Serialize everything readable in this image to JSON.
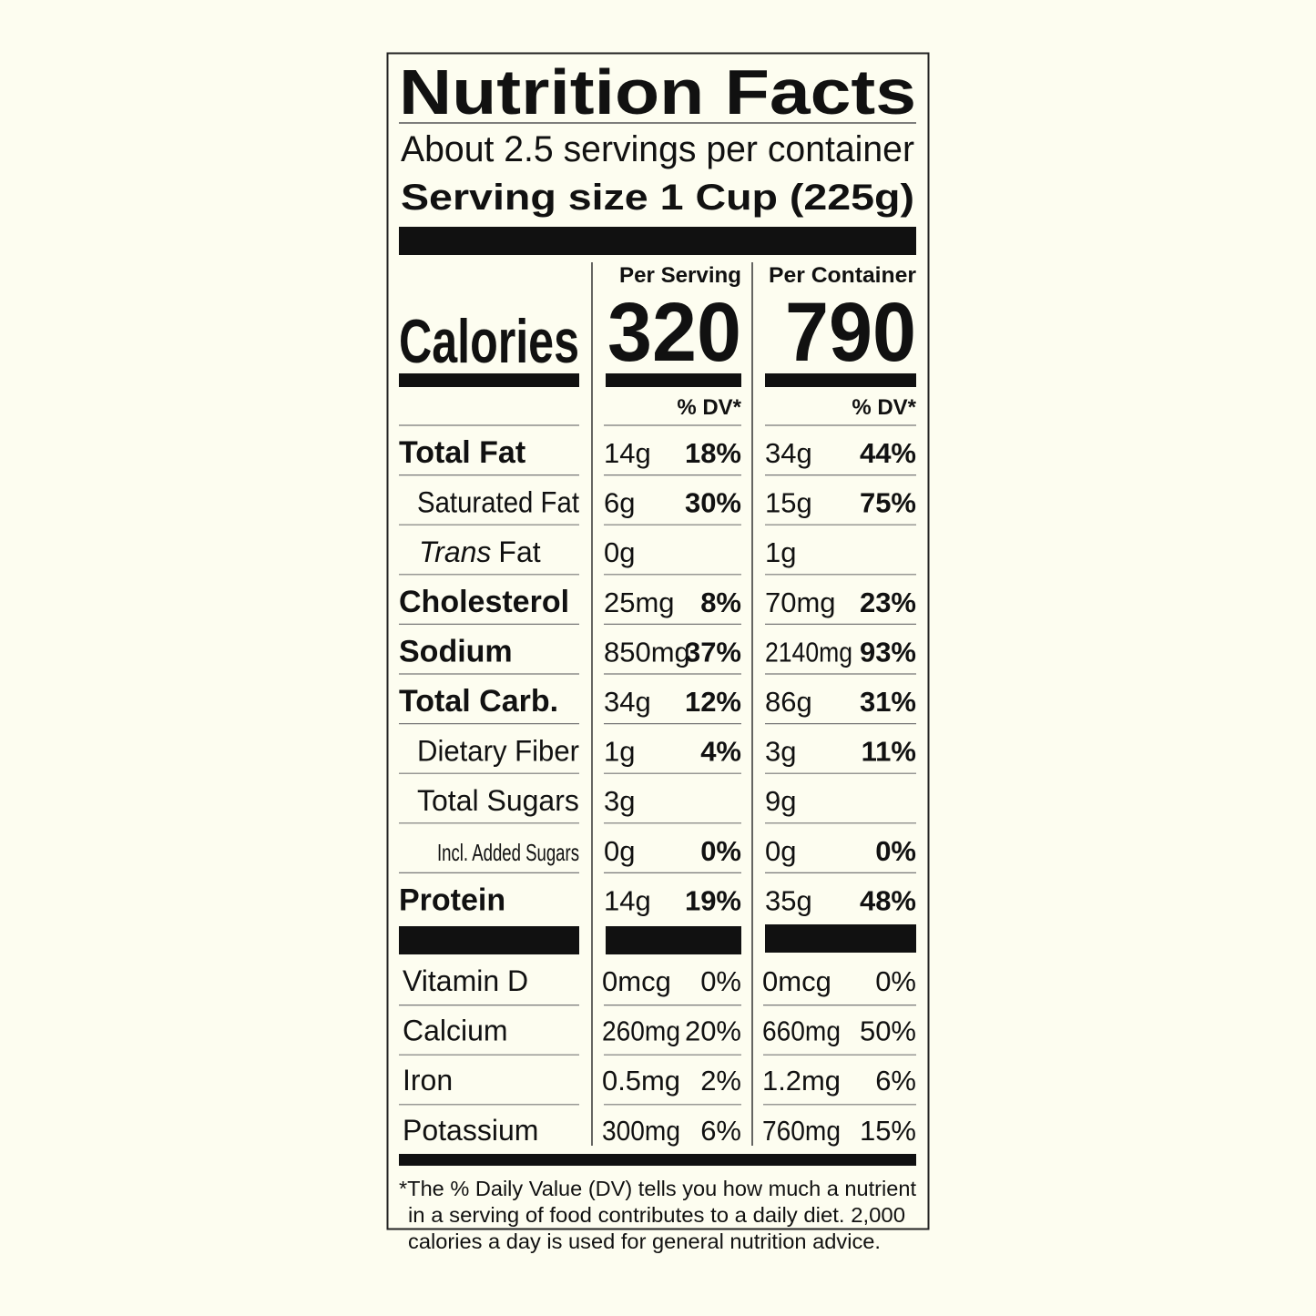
{
  "title": "Nutrition Facts",
  "servings": "About 2.5 servings per container",
  "serving_size": "Serving size 1 Cup (225g)",
  "columns": [
    "Per Serving",
    "Per Container"
  ],
  "calories": {
    "label": "Calories",
    "values": [
      "320",
      "790"
    ]
  },
  "dv_header": "% DV*",
  "nutrients": [
    {
      "name": "Total Fat",
      "serving": [
        "14g",
        "18%"
      ],
      "container": [
        "34g",
        "44%"
      ]
    },
    {
      "name": "Saturated Fat",
      "serving": [
        "6g",
        "30%"
      ],
      "container": [
        "15g",
        "75%"
      ]
    },
    {
      "name": [
        "Trans",
        "Fat"
      ],
      "serving": [
        "0g"
      ],
      "container": [
        "1g"
      ]
    },
    {
      "name": "Cholesterol",
      "serving": [
        "25mg",
        "8%"
      ],
      "container": [
        "70mg",
        "23%"
      ]
    },
    {
      "name": "Sodium",
      "serving": [
        "850mg",
        "37%"
      ],
      "container": [
        "2140mg",
        "93%"
      ]
    },
    {
      "name": "Total Carb.",
      "serving": [
        "34g",
        "12%"
      ],
      "container": [
        "86g",
        "31%"
      ]
    },
    {
      "name": "Dietary Fiber",
      "serving": [
        "1g",
        "4%"
      ],
      "container": [
        "3g",
        "11%"
      ]
    },
    {
      "name": "Total Sugars",
      "serving": [
        "3g"
      ],
      "container": [
        "9g"
      ]
    },
    {
      "name": "Incl. Added Sugars",
      "serving": [
        "0g",
        "0%"
      ],
      "container": [
        "0g",
        "0%"
      ]
    },
    {
      "name": "Protein",
      "serving": [
        "14g",
        "19%"
      ],
      "container": [
        "35g",
        "48%"
      ]
    }
  ],
  "vitamins": [
    {
      "name": "Vitamin D",
      "serving": [
        "0mcg",
        "0%"
      ],
      "container": [
        "0mcg",
        "0%"
      ]
    },
    {
      "name": "Calcium",
      "serving": [
        "260mg",
        "20%"
      ],
      "container": [
        "660mg",
        "50%"
      ]
    },
    {
      "name": "Iron",
      "serving": [
        "0.5mg",
        "2%"
      ],
      "container": [
        "1.2mg",
        "6%"
      ]
    },
    {
      "name": "Potassium",
      "serving": [
        "300mg",
        "6%"
      ],
      "container": [
        "760mg",
        "15%"
      ]
    }
  ],
  "footnote": [
    "*The % Daily Value (DV) tells you how much a nutrient",
    "in a serving of food contributes to a daily diet. 2,000",
    "calories a day is used for general nutrition advice."
  ]
}
